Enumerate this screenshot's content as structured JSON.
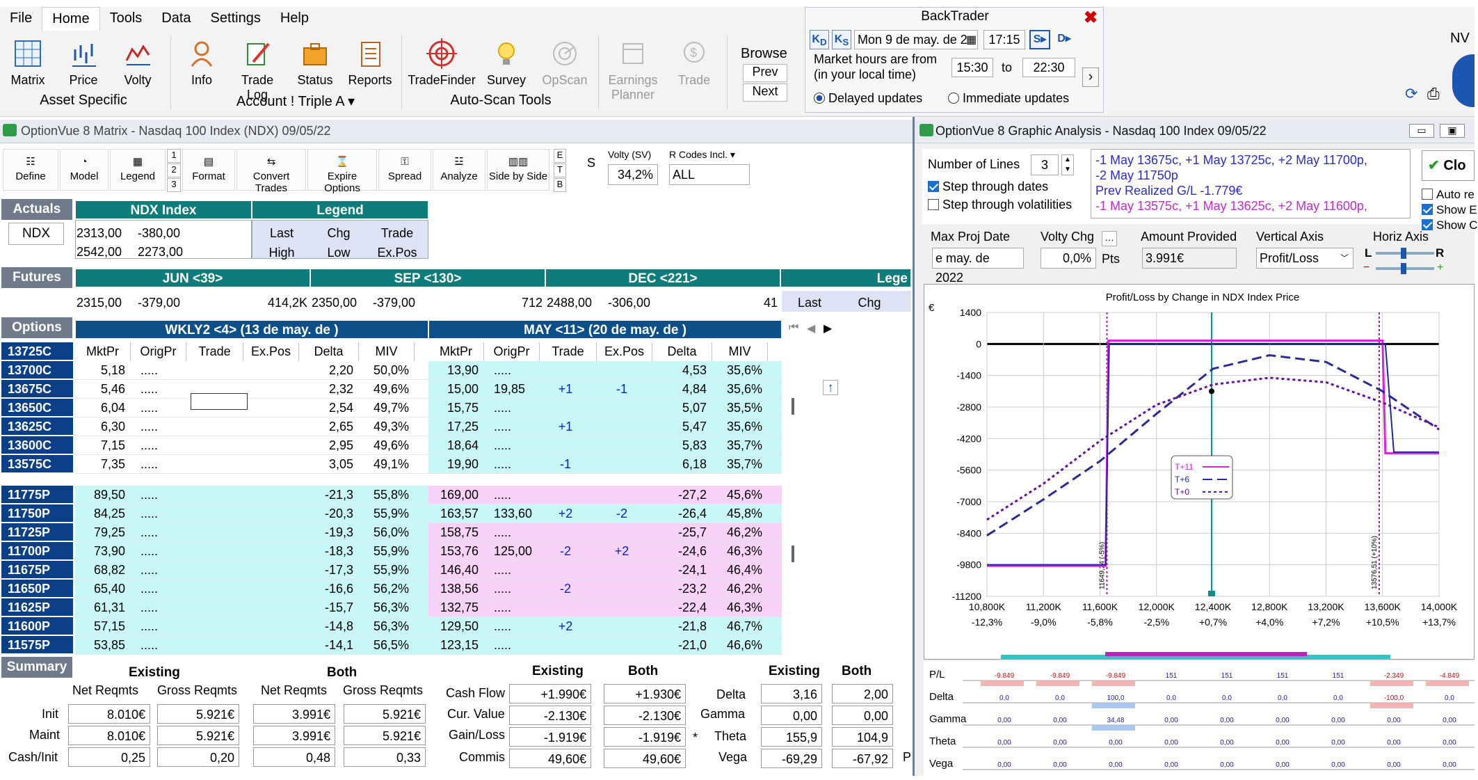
{
  "menu": {
    "file": "File",
    "home": "Home",
    "tools": "Tools",
    "data": "Data",
    "settings": "Settings",
    "help": "Help"
  },
  "ribbon": {
    "matrix": "Matrix",
    "price": "Price",
    "volty": "Volty",
    "asset_group": "Asset Specific",
    "info": "Info",
    "tradelog": "Trade Log",
    "status": "Status",
    "reports": "Reports",
    "account_group": "Account ! Triple A ▾",
    "tradefinder": "TradeFinder",
    "survey": "Survey",
    "opscan": "OpScan",
    "autoscan_group": "Auto-Scan Tools",
    "earnings1": "Earnings",
    "earnings2": "Planner",
    "trade": "Trade",
    "browse": "Browse",
    "prev": "Prev",
    "next": "Next",
    "nv": "NV"
  },
  "backtrader": {
    "title": "BackTrader",
    "date": "Mon 9 de may. de 2",
    "time": "17:15",
    "market_hours": "Market hours are from",
    "local": "(in your local time)",
    "from": "15:30",
    "to_label": "to",
    "to": "22:30",
    "delayed": "Delayed updates",
    "immediate": "Immediate updates",
    "kd": "K",
    "kdsub": "D",
    "ks": "K",
    "kssub": "S",
    "sk": "S",
    "dk": "D"
  },
  "matrix": {
    "title": "OptionVue 8 Matrix - Nasdaq 100 Index (NDX)  09/05/22",
    "toolbar": {
      "define": "Define",
      "model": "Model",
      "legend": "Legend",
      "n1": "1",
      "n2": "2",
      "n3": "3",
      "format": "Format",
      "convert": "Convert Trades",
      "expire": "Expire Options",
      "spread": "Spread",
      "analyze": "Analyze",
      "side": "Side by Side",
      "e": "E",
      "t": "T",
      "b": "B",
      "s": "S",
      "volty_label": "Volty (SV)",
      "volty_value": "34,2%",
      "rcodes_label": "R Codes Incl.",
      "rcodes_value": "ALL"
    },
    "actuals": {
      "label": "Actuals",
      "symbol": "NDX",
      "index_header": "NDX Index",
      "legend_header": "Legend",
      "r1": [
        "2313,00",
        "-380,00"
      ],
      "r2": [
        "2542,00",
        "2273,00"
      ],
      "legend": [
        "Last",
        "Chg",
        "Trade",
        "High",
        "Low",
        "Ex.Pos"
      ]
    },
    "futures": {
      "label": "Futures",
      "headers": [
        "JUN <39>",
        "SEP <130>",
        "DEC <221>",
        "Lege"
      ],
      "jun": [
        "2315,00",
        "-379,00",
        "414,2K"
      ],
      "sep": [
        "2350,00",
        "-379,00",
        "712"
      ],
      "dec": [
        "2488,00",
        "-306,00",
        "41"
      ],
      "legend": [
        "Last",
        "Chg"
      ]
    },
    "options": {
      "label": "Options",
      "wk_header": "WKLY2 <4> (13 de may. de )",
      "may_header": "MAY <11> (20 de may. de )",
      "cols": [
        "MktPr",
        "OrigPr",
        "Trade",
        "Ex.Pos",
        "Delta",
        "MIV"
      ],
      "rows": [
        {
          "sym": "13725C",
          "w": [
            "",
            "",
            "",
            "",
            "",
            ""
          ],
          "m": [
            "",
            "",
            "",
            "",
            "",
            ""
          ]
        },
        {
          "sym": "13700C",
          "w": [
            "5,18",
            ".....",
            "",
            "",
            "2,20",
            "50,0%"
          ],
          "m": [
            "13,90",
            ".....",
            "",
            "",
            "4,53",
            "35,6%"
          ]
        },
        {
          "sym": "13675C",
          "w": [
            "5,46",
            ".....",
            "",
            "",
            "2,32",
            "49,6%"
          ],
          "m": [
            "15,00",
            "19,85",
            "+1",
            "-1",
            "4,84",
            "35,6%"
          ]
        },
        {
          "sym": "13650C",
          "w": [
            "6,04",
            ".....",
            "",
            "",
            "2,54",
            "49,7%"
          ],
          "m": [
            "15,75",
            ".....",
            "",
            "",
            "5,07",
            "35,5%"
          ]
        },
        {
          "sym": "13625C",
          "w": [
            "6,30",
            ".....",
            "",
            "",
            "2,65",
            "49,3%"
          ],
          "m": [
            "17,25",
            ".....",
            "+1",
            "",
            "5,47",
            "35,6%"
          ]
        },
        {
          "sym": "13600C",
          "w": [
            "7,15",
            ".....",
            "",
            "",
            "2,95",
            "49,6%"
          ],
          "m": [
            "18,64",
            ".....",
            "",
            "",
            "5,83",
            "35,7%"
          ]
        },
        {
          "sym": "13575C",
          "w": [
            "7,35",
            ".....",
            "",
            "",
            "3,05",
            "49,1%"
          ],
          "m": [
            "19,90",
            ".....",
            "-1",
            "",
            "6,18",
            "35,7%"
          ]
        },
        {
          "sym": "11775P",
          "w": [
            "89,50",
            ".....",
            "",
            "",
            "-21,3",
            "55,8%"
          ],
          "m": [
            "169,00",
            ".....",
            "",
            "",
            "-27,2",
            "45,6%"
          ]
        },
        {
          "sym": "11750P",
          "w": [
            "84,25",
            ".....",
            "",
            "",
            "-20,3",
            "55,9%"
          ],
          "m": [
            "163,57",
            "133,60",
            "+2",
            "-2",
            "-26,4",
            "45,8%"
          ]
        },
        {
          "sym": "11725P",
          "w": [
            "79,25",
            ".....",
            "",
            "",
            "-19,3",
            "56,0%"
          ],
          "m": [
            "158,75",
            ".....",
            "",
            "",
            "-25,7",
            "46,2%"
          ]
        },
        {
          "sym": "11700P",
          "w": [
            "73,90",
            ".....",
            "",
            "",
            "-18,3",
            "55,9%"
          ],
          "m": [
            "153,76",
            "125,00",
            "-2",
            "+2",
            "-24,6",
            "46,3%"
          ]
        },
        {
          "sym": "11675P",
          "w": [
            "68,82",
            ".....",
            "",
            "",
            "-17,3",
            "55,9%"
          ],
          "m": [
            "146,40",
            ".....",
            "",
            "",
            "-24,1",
            "46,4%"
          ]
        },
        {
          "sym": "11650P",
          "w": [
            "65,40",
            ".....",
            "",
            "",
            "-16,6",
            "56,2%"
          ],
          "m": [
            "138,56",
            ".....",
            "-2",
            "",
            "-23,2",
            "46,2%"
          ]
        },
        {
          "sym": "11625P",
          "w": [
            "61,31",
            ".....",
            "",
            "",
            "-15,7",
            "56,3%"
          ],
          "m": [
            "132,75",
            ".....",
            "",
            "",
            "-22,4",
            "46,3%"
          ]
        },
        {
          "sym": "11600P",
          "w": [
            "57,15",
            ".....",
            "",
            "",
            "-14,8",
            "56,3%"
          ],
          "m": [
            "129,50",
            ".....",
            "+2",
            "",
            "-21,8",
            "46,7%"
          ]
        },
        {
          "sym": "11575P",
          "w": [
            "53,85",
            ".....",
            "",
            "",
            "-14,1",
            "56,5%"
          ],
          "m": [
            "123,15",
            ".....",
            "",
            "",
            "-21,0",
            "46,6%"
          ]
        }
      ]
    },
    "summary": {
      "label": "Summary",
      "existing": "Existing",
      "both": "Both",
      "net": "Net Reqmts",
      "gross": "Gross Reqmts",
      "init": "Init",
      "maint": "Maint",
      "cashinit": "Cash/Init",
      "init_vals": [
        "8.010€",
        "5.921€",
        "3.991€",
        "5.921€"
      ],
      "maint_vals": [
        "8.010€",
        "5.921€",
        "3.991€",
        "5.921€"
      ],
      "cash_vals": [
        "0,25",
        "0,20",
        "0,48",
        "0,33"
      ],
      "cashflow": "Cash Flow",
      "curvalue": "Cur. Value",
      "gainloss": "Gain/Loss",
      "commis": "Commis",
      "cf_vals": [
        "+1.990€",
        "+1.930€"
      ],
      "cv_vals": [
        "-2.130€",
        "-2.130€"
      ],
      "gl_vals": [
        "-1.919€",
        "-1.919€"
      ],
      "cm_vals": [
        "49,60€",
        "49,60€"
      ],
      "star": "*",
      "delta": "Delta",
      "gamma": "Gamma",
      "theta": "Theta",
      "vega": "Vega",
      "delta_vals": [
        "3,16",
        "2,00"
      ],
      "gamma_vals": [
        "0,00",
        "0,00"
      ],
      "theta_vals": [
        "155,9",
        "104,9"
      ],
      "vega_vals": [
        "-69,29",
        "-67,92"
      ],
      "p": "P"
    }
  },
  "graph": {
    "title": "OptionVue 8 Graphic Analysis - Nasdaq 100 Index  09/05/22",
    "num_lines_label": "Number of Lines",
    "num_lines": "3",
    "step_dates": "Step through dates",
    "step_vols": "Step through volatilities",
    "desc1": "-1 May 13675c, +1 May 13725c, +2 May 11700p,",
    "desc2": "-2 May 11750p",
    "desc3": "Prev Realized G/L -1.779€",
    "desc4": "-1 May 13575c, +1 May 13625c, +2 May 11600p,",
    "close": "Clo",
    "auto": "Auto re",
    "show1": "Show E",
    "show2": "Show C",
    "maxproj_label": "Max Proj Date",
    "maxproj": "e may. de 2022",
    "voltychg_label": "Volty Chg",
    "voltychg": "0,0%",
    "pts": "Pts",
    "amount_label": "Amount Provided",
    "amount": "3.991€",
    "vaxis_label": "Vertical Axis",
    "vaxis": "Profit/Loss",
    "haxis_label": "Horiz Axis",
    "l": "L",
    "r": "R",
    "chart_title": "Profit/Loss by Change in NDX Index Price",
    "currency": "€",
    "yticks": [
      "1400",
      "0",
      "-1400",
      "-2800",
      "-4200",
      "-5600",
      "-7000",
      "-8400",
      "-9800",
      "-11200"
    ],
    "xticks": [
      "10,800K",
      "11,200K",
      "11,600K",
      "12,000K",
      "12,400K",
      "12,800K",
      "13,200K",
      "13,600K",
      "14,000K"
    ],
    "xpct": [
      "-12,3%",
      "-9,0%",
      "-5,8%",
      "-2,5%",
      "+0,7%",
      "+4,0%",
      "+7,2%",
      "+10,5%",
      "+13,7%"
    ],
    "vline_left": "11649,24 (-5%)",
    "vline_right": "13576,51 (+10%)",
    "legend": [
      "T+11",
      "T+6",
      "T+0"
    ],
    "greek_labels": [
      "P/L",
      "Delta",
      "Gamma",
      "Theta",
      "Vega"
    ],
    "pl_vals": [
      "-9.849",
      "-9.849",
      "-9.849",
      "151",
      "151",
      "151",
      "151",
      "-2.349",
      "-4.849"
    ],
    "delta_vals": [
      "0,0",
      "0,0",
      "100,0",
      "0,0",
      "0,0",
      "0,0",
      "0,0",
      "-100,0",
      "0,0"
    ],
    "gamma_vals": [
      "0,00",
      "0,00",
      "34,48",
      "0,00",
      "0,00",
      "0,00",
      "0,00",
      "0,00",
      "0,00"
    ],
    "theta_vals": [
      "0,00",
      "0,00",
      "0,00",
      "0,00",
      "0,00",
      "0,00",
      "0,00",
      "0,00",
      "0,00"
    ],
    "vega_vals": [
      "0,00",
      "0,00",
      "0,00",
      "0,00",
      "0,00",
      "0,00",
      "0,00",
      "0,00",
      "0,00"
    ]
  },
  "chart_data": {
    "type": "line",
    "title": "Profit/Loss by Change in NDX Index Price",
    "xlabel": "",
    "ylabel": "€",
    "xlim": [
      10800,
      14000
    ],
    "ylim": [
      -11200,
      1400
    ],
    "series": [
      {
        "name": "T+11",
        "x": [
          10800,
          11640,
          11660,
          13600,
          13620,
          14000
        ],
        "values": [
          -9849,
          -9849,
          151,
          151,
          -4849,
          -4849
        ]
      },
      {
        "name": "T+6",
        "x": [
          10800,
          11200,
          11600,
          12000,
          12400,
          12800,
          13200,
          13600,
          14000
        ],
        "values": [
          -8500,
          -6900,
          -5200,
          -3100,
          -1100,
          -500,
          -800,
          -2100,
          -3800
        ]
      },
      {
        "name": "T+0",
        "x": [
          10800,
          11200,
          11600,
          12000,
          12400,
          12800,
          13200,
          13600,
          14000
        ],
        "values": [
          -7800,
          -6200,
          -4300,
          -2700,
          -1800,
          -1500,
          -1700,
          -2600,
          -3700
        ]
      }
    ]
  }
}
